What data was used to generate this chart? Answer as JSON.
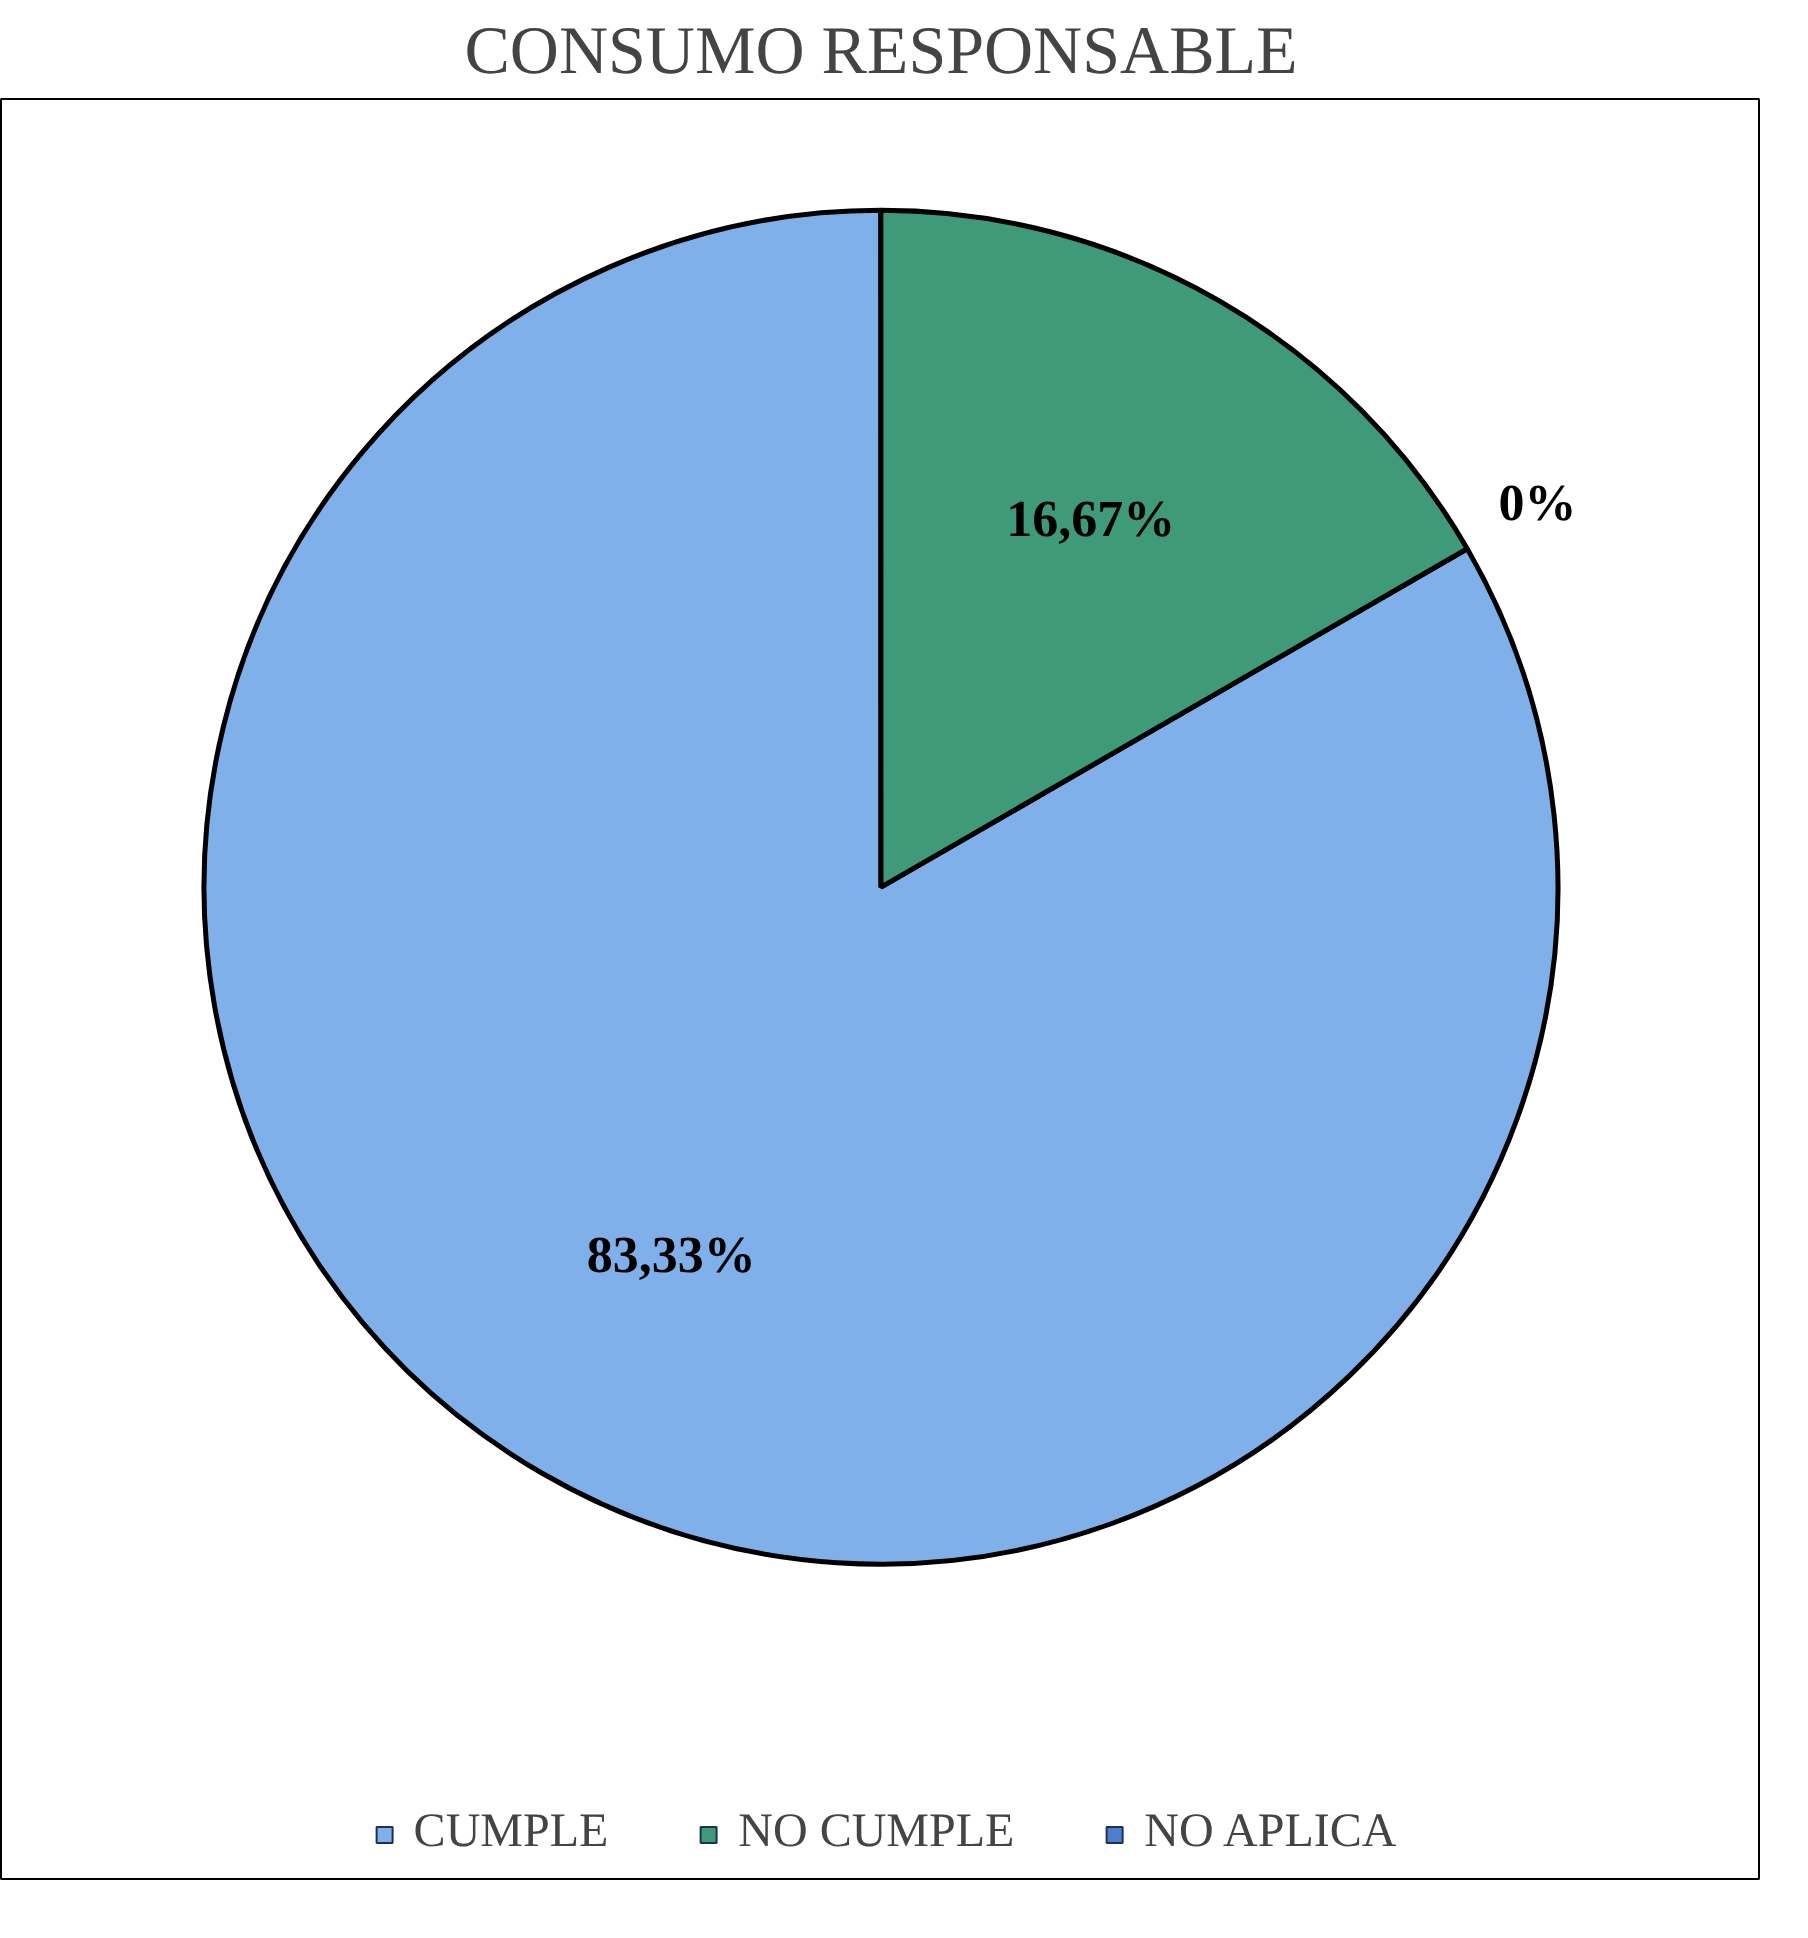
{
  "chart_data": {
    "type": "pie",
    "title": "CONSUMO RESPONSABLE",
    "categories": [
      "CUMPLE",
      "NO CUMPLE",
      "NO APLICA"
    ],
    "values": [
      83.33,
      16.67,
      0
    ],
    "colors": [
      "#7fb0ea",
      "#3f9a7a",
      "#4a7fd0"
    ],
    "value_labels": [
      "83,33%",
      "16,67%",
      "0%"
    ],
    "legend": "bottom"
  }
}
